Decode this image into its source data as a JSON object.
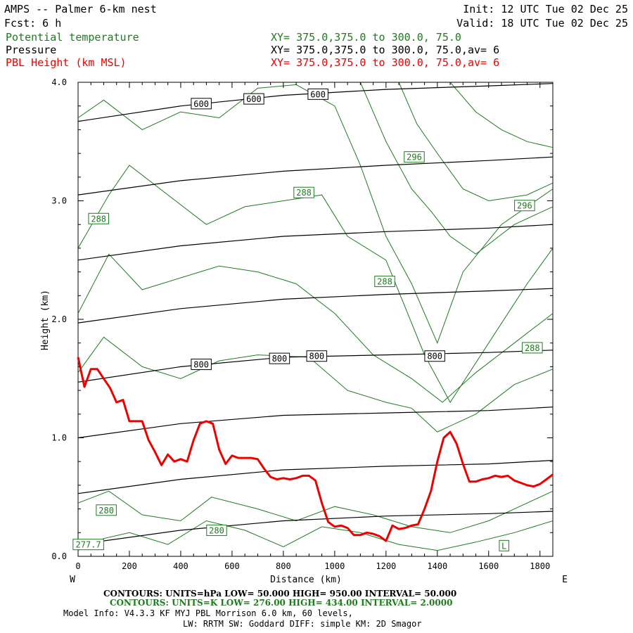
{
  "header": {
    "title": "AMPS -- Palmer 6-km nest",
    "fcst": "Fcst:    6 h",
    "init": "Init: 12 UTC Tue 02 Dec 25",
    "valid": "Valid: 18 UTC Tue 02 Dec 25",
    "theta_label": "Potential temperature",
    "pressure_label": "Pressure",
    "pbl_label": "PBL Height (km MSL)",
    "theta_xy": "XY= 375.0,375.0 to 300.0, 75.0",
    "pressure_xy": "XY= 375.0,375.0 to 300.0, 75.0,av=  6",
    "pbl_xy": "XY= 375.0,375.0 to 300.0, 75.0,av=  6"
  },
  "colors": {
    "pressure": "#000000",
    "theta": "#1f7a1f",
    "pbl": "#ee0000"
  },
  "chart_data": {
    "type": "line",
    "title": "AMPS -- Palmer 6-km nest",
    "xlabel": "Distance (km)",
    "ylabel": "Height (km)",
    "xlim": [
      0,
      1850
    ],
    "ylim": [
      0,
      4
    ],
    "x_ticks": [
      0,
      200,
      400,
      600,
      800,
      1000,
      1200,
      1400,
      1600,
      1800
    ],
    "x_tick_labels": [
      "0",
      "200",
      "400",
      "600",
      "800",
      "1000",
      "1200",
      "1400",
      "1600",
      "1800"
    ],
    "y_ticks": [
      0,
      1,
      2,
      3,
      4
    ],
    "y_tick_labels": [
      "0.0",
      "1.0",
      "2.0",
      "3.0",
      "4.0"
    ],
    "left_end": "W",
    "right_end": "E",
    "pressure_contours": [
      {
        "x": [
          0,
          400,
          800,
          1200,
          1600,
          1850
        ],
        "y": [
          3.67,
          3.8,
          3.89,
          3.94,
          3.97,
          3.99
        ]
      },
      {
        "x": [
          0,
          400,
          800,
          1200,
          1600,
          1850
        ],
        "y": [
          3.05,
          3.17,
          3.25,
          3.3,
          3.34,
          3.37
        ]
      },
      {
        "x": [
          0,
          400,
          800,
          1200,
          1600,
          1850
        ],
        "y": [
          2.5,
          2.62,
          2.7,
          2.74,
          2.77,
          2.8
        ]
      },
      {
        "x": [
          0,
          400,
          800,
          1200,
          1600,
          1850
        ],
        "y": [
          1.97,
          2.09,
          2.17,
          2.21,
          2.24,
          2.26
        ]
      },
      {
        "x": [
          0,
          400,
          800,
          1200,
          1600,
          1850
        ],
        "y": [
          1.47,
          1.6,
          1.68,
          1.7,
          1.72,
          1.74
        ]
      },
      {
        "x": [
          0,
          400,
          800,
          1200,
          1600,
          1850
        ],
        "y": [
          1.0,
          1.12,
          1.19,
          1.21,
          1.23,
          1.26
        ]
      },
      {
        "x": [
          0,
          400,
          800,
          1200,
          1600,
          1850
        ],
        "y": [
          0.53,
          0.65,
          0.73,
          0.76,
          0.78,
          0.81
        ]
      },
      {
        "x": [
          0,
          400,
          800,
          1200,
          1600,
          1850
        ],
        "y": [
          0.1,
          0.22,
          0.3,
          0.34,
          0.36,
          0.38
        ]
      }
    ],
    "pressure_labels": [
      {
        "x": 480,
        "y": 3.82,
        "text": "600"
      },
      {
        "x": 685,
        "y": 3.86,
        "text": "600"
      },
      {
        "x": 935,
        "y": 3.9,
        "text": "600"
      },
      {
        "x": 480,
        "y": 1.62,
        "text": "800"
      },
      {
        "x": 785,
        "y": 1.67,
        "text": "800"
      },
      {
        "x": 930,
        "y": 1.69,
        "text": "800"
      },
      {
        "x": 1390,
        "y": 1.69,
        "text": "800"
      }
    ],
    "theta_contours": [
      {
        "x": [
          0,
          100,
          200,
          350,
          500,
          650,
          800,
          950,
          1100,
          1250,
          1400,
          1550,
          1700,
          1850
        ],
        "y": [
          0.05,
          0.15,
          0.2,
          0.1,
          0.3,
          0.22,
          0.08,
          0.25,
          0.2,
          0.1,
          0.05,
          0.12,
          0.2,
          0.3
        ]
      },
      {
        "x": [
          0,
          120,
          250,
          400,
          520,
          700,
          850,
          1000,
          1150,
          1300,
          1450,
          1600,
          1750,
          1850
        ],
        "y": [
          0.45,
          0.55,
          0.35,
          0.3,
          0.5,
          0.4,
          0.3,
          0.42,
          0.35,
          0.25,
          0.2,
          0.3,
          0.45,
          0.55
        ]
      },
      {
        "x": [
          0,
          100,
          250,
          400,
          550,
          700,
          900,
          1050,
          1200,
          1300,
          1400,
          1550,
          1700,
          1850
        ],
        "y": [
          1.55,
          1.85,
          1.6,
          1.5,
          1.65,
          1.7,
          1.68,
          1.4,
          1.3,
          1.25,
          1.05,
          1.2,
          1.45,
          1.58
        ]
      },
      {
        "x": [
          0,
          120,
          250,
          400,
          550,
          700,
          850,
          1000,
          1150,
          1300,
          1420,
          1550,
          1700,
          1850
        ],
        "y": [
          2.05,
          2.55,
          2.25,
          2.35,
          2.45,
          2.4,
          2.3,
          2.05,
          1.7,
          1.5,
          1.3,
          1.55,
          1.8,
          2.05
        ]
      },
      {
        "x": [
          0,
          120,
          200,
          350,
          500,
          650,
          800,
          950,
          1050,
          1200,
          1350,
          1450,
          1600,
          1750,
          1850
        ],
        "y": [
          2.6,
          3.05,
          3.3,
          3.05,
          2.8,
          2.95,
          3.0,
          3.05,
          2.7,
          2.5,
          1.7,
          1.3,
          1.8,
          2.3,
          2.6
        ]
      },
      {
        "x": [
          0,
          100,
          250,
          400,
          550,
          700,
          850,
          1000,
          1100,
          1200,
          1300,
          1400,
          1500,
          1650,
          1850
        ],
        "y": [
          3.7,
          3.85,
          3.6,
          3.75,
          3.7,
          3.95,
          3.98,
          3.8,
          3.3,
          2.7,
          2.3,
          1.8,
          2.4,
          2.8,
          3.1
        ]
      },
      {
        "x": [
          1100,
          1200,
          1300,
          1380,
          1450,
          1550,
          1700,
          1850
        ],
        "y": [
          4.0,
          3.5,
          3.1,
          2.9,
          2.7,
          2.55,
          2.8,
          2.95
        ]
      },
      {
        "x": [
          1250,
          1320,
          1400,
          1500,
          1600,
          1750,
          1850
        ],
        "y": [
          4.0,
          3.65,
          3.4,
          3.1,
          3.0,
          3.05,
          3.15
        ]
      },
      {
        "x": [
          1450,
          1550,
          1650,
          1750,
          1850
        ],
        "y": [
          4.0,
          3.75,
          3.6,
          3.5,
          3.45
        ]
      }
    ],
    "theta_labels": [
      {
        "x": 80,
        "y": 2.85,
        "text": "288"
      },
      {
        "x": 880,
        "y": 3.07,
        "text": "288"
      },
      {
        "x": 1195,
        "y": 2.32,
        "text": "288"
      },
      {
        "x": 1770,
        "y": 1.76,
        "text": "288"
      },
      {
        "x": 1310,
        "y": 3.37,
        "text": "296"
      },
      {
        "x": 1740,
        "y": 2.96,
        "text": "296"
      },
      {
        "x": 110,
        "y": 0.39,
        "text": "280"
      },
      {
        "x": 540,
        "y": 0.22,
        "text": "280"
      },
      {
        "x": 40,
        "y": 0.1,
        "text": "277.7"
      },
      {
        "x": 1660,
        "y": 0.09,
        "text": "L"
      }
    ],
    "pbl_height": {
      "x": [
        0,
        25,
        50,
        75,
        100,
        125,
        150,
        175,
        200,
        225,
        250,
        275,
        300,
        325,
        350,
        375,
        400,
        425,
        450,
        475,
        500,
        525,
        550,
        575,
        600,
        625,
        650,
        675,
        700,
        725,
        750,
        775,
        800,
        825,
        850,
        875,
        900,
        925,
        950,
        975,
        1000,
        1025,
        1050,
        1075,
        1100,
        1125,
        1150,
        1175,
        1200,
        1225,
        1250,
        1275,
        1300,
        1325,
        1350,
        1375,
        1400,
        1425,
        1450,
        1475,
        1500,
        1525,
        1550,
        1575,
        1600,
        1625,
        1650,
        1675,
        1700,
        1725,
        1750,
        1775,
        1800,
        1825,
        1850
      ],
      "y": [
        1.68,
        1.43,
        1.58,
        1.58,
        1.5,
        1.42,
        1.3,
        1.32,
        1.14,
        1.14,
        1.14,
        0.98,
        0.88,
        0.77,
        0.86,
        0.8,
        0.82,
        0.8,
        0.98,
        1.12,
        1.14,
        1.12,
        0.9,
        0.78,
        0.85,
        0.83,
        0.83,
        0.83,
        0.82,
        0.74,
        0.67,
        0.65,
        0.66,
        0.65,
        0.66,
        0.68,
        0.68,
        0.64,
        0.45,
        0.29,
        0.25,
        0.26,
        0.24,
        0.18,
        0.18,
        0.2,
        0.19,
        0.17,
        0.13,
        0.26,
        0.23,
        0.24,
        0.26,
        0.27,
        0.4,
        0.55,
        0.8,
        1.0,
        1.05,
        0.95,
        0.78,
        0.63,
        0.63,
        0.65,
        0.66,
        0.68,
        0.67,
        0.68,
        0.64,
        0.62,
        0.6,
        0.59,
        0.61,
        0.65,
        0.69
      ]
    }
  },
  "footer": {
    "pressure_contours": "CONTOURS:  UNITS=hPa  LOW=  50.000        HIGH=  950.00          INTERVAL=   50.000",
    "theta_contours": "CONTOURS:  UNITS=K  LOW=  276.00        HIGH=  434.00          INTERVAL=   2.0000",
    "model_info": "Model Info: V4.3.3    KF       MYJ PBL  Morrison              6.0 km,  60 levels,",
    "model_info2": "LW: RRTM SW: Goddard DIFF: simple KM: 2D Smagor"
  }
}
